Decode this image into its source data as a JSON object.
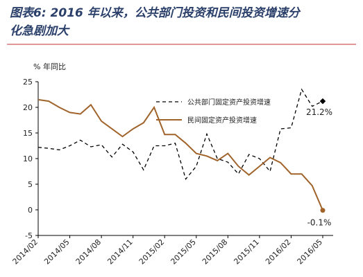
{
  "chart_data": {
    "type": "line",
    "title": [
      "图表6: 2016 年以来，公共部门投资和民间投资增速分",
      "化急剧加大"
    ],
    "y_unit": "% 年同比",
    "categories": [
      "2014/02",
      null,
      null,
      "2014/05",
      null,
      null,
      "2014/08",
      null,
      null,
      "2014/11",
      null,
      null,
      "2015/02",
      null,
      null,
      "2015/05",
      null,
      null,
      "2015/08",
      null,
      null,
      "2015/11",
      null,
      null,
      "2016/02",
      null,
      null,
      "2016/05"
    ],
    "series": [
      {
        "name": "公共部门固定资产投资增速",
        "color": "#000000",
        "dash": true,
        "values": [
          12.2,
          12,
          11.7,
          12.5,
          13.6,
          12.3,
          12.7,
          10.3,
          12.8,
          11.3,
          7.8,
          12.5,
          12.5,
          13,
          6,
          8.5,
          14.8,
          10,
          9.3,
          7,
          10.8,
          10,
          7.5,
          15.8,
          16,
          23.5,
          20.2,
          21.2
        ],
        "end_label": "21.2%"
      },
      {
        "name": "民间固定资产投资增速",
        "color": "#a0632a",
        "dash": false,
        "values": [
          21.5,
          21.2,
          20,
          19,
          18.7,
          20.5,
          17.3,
          15.8,
          14.3,
          15.8,
          17,
          20,
          14.7,
          14.7,
          13,
          11,
          10.5,
          9.6,
          11,
          8.5,
          6.8,
          8.5,
          10.2,
          9.2,
          7,
          7,
          4.7,
          -0.1
        ],
        "end_label": "-0.1%"
      }
    ],
    "ylim": [
      -5,
      25
    ],
    "yticks": [
      -5,
      0,
      5,
      10,
      15,
      20,
      25
    ]
  }
}
